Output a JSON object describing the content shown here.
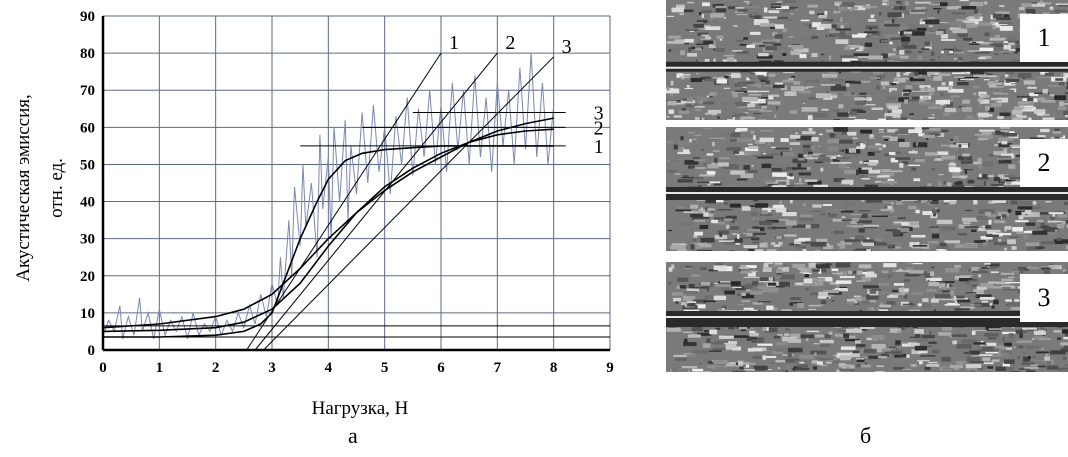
{
  "chart_data": {
    "type": "line",
    "xlabel": "Нагрузка, Н",
    "ylabel_line1": "Акустическая эмиссия,",
    "ylabel_line2": "отн. ед.",
    "xlim": [
      0,
      9
    ],
    "ylim": [
      0,
      90
    ],
    "x_ticks": [
      "0",
      "1",
      "2",
      "3",
      "4",
      "5",
      "6",
      "7",
      "8",
      "9"
    ],
    "y_ticks": [
      "0",
      "10",
      "20",
      "30",
      "40",
      "50",
      "60",
      "70",
      "80",
      "90"
    ],
    "grid": true,
    "series": [
      {
        "name": "1",
        "color": "#000000",
        "x": [
          0,
          1,
          2,
          2.5,
          2.8,
          3.0,
          3.2,
          3.5,
          3.8,
          4.0,
          4.3,
          4.6,
          5.0,
          5.5,
          6.0,
          7.0,
          8.0
        ],
        "y": [
          3.5,
          3.5,
          4,
          5,
          7,
          10,
          18,
          30,
          40,
          46,
          51,
          53,
          54,
          54.5,
          55,
          55,
          55
        ]
      },
      {
        "name": "2",
        "color": "#000000",
        "x": [
          0,
          1,
          2,
          2.5,
          3.0,
          3.5,
          4.0,
          4.5,
          5.0,
          5.5,
          6.0,
          6.5,
          7.0,
          7.5,
          8.0
        ],
        "y": [
          5,
          5.3,
          6,
          7.5,
          11,
          18,
          28,
          37,
          44,
          49,
          53,
          56,
          58,
          59,
          59.5
        ]
      },
      {
        "name": "3",
        "color": "#000000",
        "x": [
          0,
          1,
          2,
          2.5,
          3.0,
          3.5,
          4.0,
          4.5,
          5.0,
          5.5,
          6.0,
          6.5,
          7.0,
          7.5,
          8.0
        ],
        "y": [
          6,
          7,
          9,
          11,
          15,
          22,
          30,
          37,
          43,
          48,
          52,
          56,
          59,
          61,
          62.5
        ]
      }
    ],
    "tangent_lines": [
      {
        "label": "1",
        "x1": 2.55,
        "y1": 0,
        "x2": 6.0,
        "y2": 80
      },
      {
        "label": "2",
        "x1": 2.7,
        "y1": 0,
        "x2": 7.0,
        "y2": 80
      },
      {
        "label": "3",
        "x1": 2.85,
        "y1": 0,
        "x2": 8.0,
        "y2": 79
      }
    ],
    "plateau_lines": [
      {
        "label": "1",
        "x1": 3.5,
        "x2": 8.0,
        "y": 55
      },
      {
        "label": "2",
        "x1": 4.6,
        "x2": 8.0,
        "y": 60
      },
      {
        "label": "3",
        "x1": 5.5,
        "x2": 8.0,
        "y": 64
      }
    ],
    "baseline_lines": [
      {
        "x1": 0,
        "x2": 9,
        "y": 3.5
      },
      {
        "x1": 0,
        "x2": 9,
        "y": 6.5
      }
    ],
    "noise": [
      [
        0,
        4
      ],
      [
        0.1,
        8
      ],
      [
        0.2,
        5
      ],
      [
        0.3,
        12
      ],
      [
        0.35,
        3
      ],
      [
        0.45,
        9
      ],
      [
        0.55,
        4
      ],
      [
        0.65,
        14
      ],
      [
        0.7,
        5
      ],
      [
        0.8,
        10
      ],
      [
        0.9,
        3
      ],
      [
        1.0,
        11
      ],
      [
        1.1,
        4
      ],
      [
        1.2,
        8
      ],
      [
        1.3,
        5
      ],
      [
        1.4,
        9
      ],
      [
        1.5,
        3
      ],
      [
        1.6,
        10
      ],
      [
        1.7,
        4
      ],
      [
        1.8,
        7
      ],
      [
        1.9,
        5
      ],
      [
        2.0,
        9
      ],
      [
        2.1,
        4
      ],
      [
        2.2,
        8
      ],
      [
        2.3,
        5
      ],
      [
        2.4,
        10
      ],
      [
        2.5,
        6
      ],
      [
        2.6,
        12
      ],
      [
        2.7,
        7
      ],
      [
        2.8,
        15
      ],
      [
        2.9,
        9
      ],
      [
        3.0,
        18
      ],
      [
        3.1,
        12
      ],
      [
        3.15,
        25
      ],
      [
        3.2,
        14
      ],
      [
        3.3,
        35
      ],
      [
        3.35,
        20
      ],
      [
        3.4,
        44
      ],
      [
        3.5,
        28
      ],
      [
        3.55,
        50
      ],
      [
        3.6,
        33
      ],
      [
        3.7,
        45
      ],
      [
        3.8,
        25
      ],
      [
        3.85,
        58
      ],
      [
        3.9,
        38
      ],
      [
        4.0,
        52
      ],
      [
        4.05,
        30
      ],
      [
        4.1,
        60
      ],
      [
        4.2,
        40
      ],
      [
        4.3,
        62
      ],
      [
        4.35,
        35
      ],
      [
        4.4,
        55
      ],
      [
        4.5,
        42
      ],
      [
        4.6,
        64
      ],
      [
        4.7,
        45
      ],
      [
        4.8,
        66
      ],
      [
        4.9,
        48
      ],
      [
        5.0,
        60
      ],
      [
        5.1,
        42
      ],
      [
        5.2,
        63
      ],
      [
        5.3,
        50
      ],
      [
        5.4,
        68
      ],
      [
        5.5,
        47
      ],
      [
        5.6,
        65
      ],
      [
        5.7,
        52
      ],
      [
        5.8,
        70
      ],
      [
        5.9,
        50
      ],
      [
        6.0,
        66
      ],
      [
        6.1,
        48
      ],
      [
        6.2,
        72
      ],
      [
        6.3,
        54
      ],
      [
        6.4,
        70
      ],
      [
        6.5,
        50
      ],
      [
        6.6,
        74
      ],
      [
        6.7,
        52
      ],
      [
        6.8,
        68
      ],
      [
        6.9,
        48
      ],
      [
        7.0,
        72
      ],
      [
        7.1,
        55
      ],
      [
        7.2,
        70
      ],
      [
        7.3,
        50
      ],
      [
        7.4,
        76
      ],
      [
        7.5,
        54
      ],
      [
        7.6,
        80
      ],
      [
        7.7,
        52
      ],
      [
        7.8,
        72
      ],
      [
        7.9,
        50
      ],
      [
        8.0,
        66
      ]
    ]
  },
  "panels": {
    "left_label": "а",
    "right_label": "б",
    "photos": [
      "1",
      "2",
      "3"
    ]
  },
  "colors": {
    "grid": "#5a6a8a",
    "noise": "#7a88b8",
    "photo_bg": "#6b6b6b"
  }
}
